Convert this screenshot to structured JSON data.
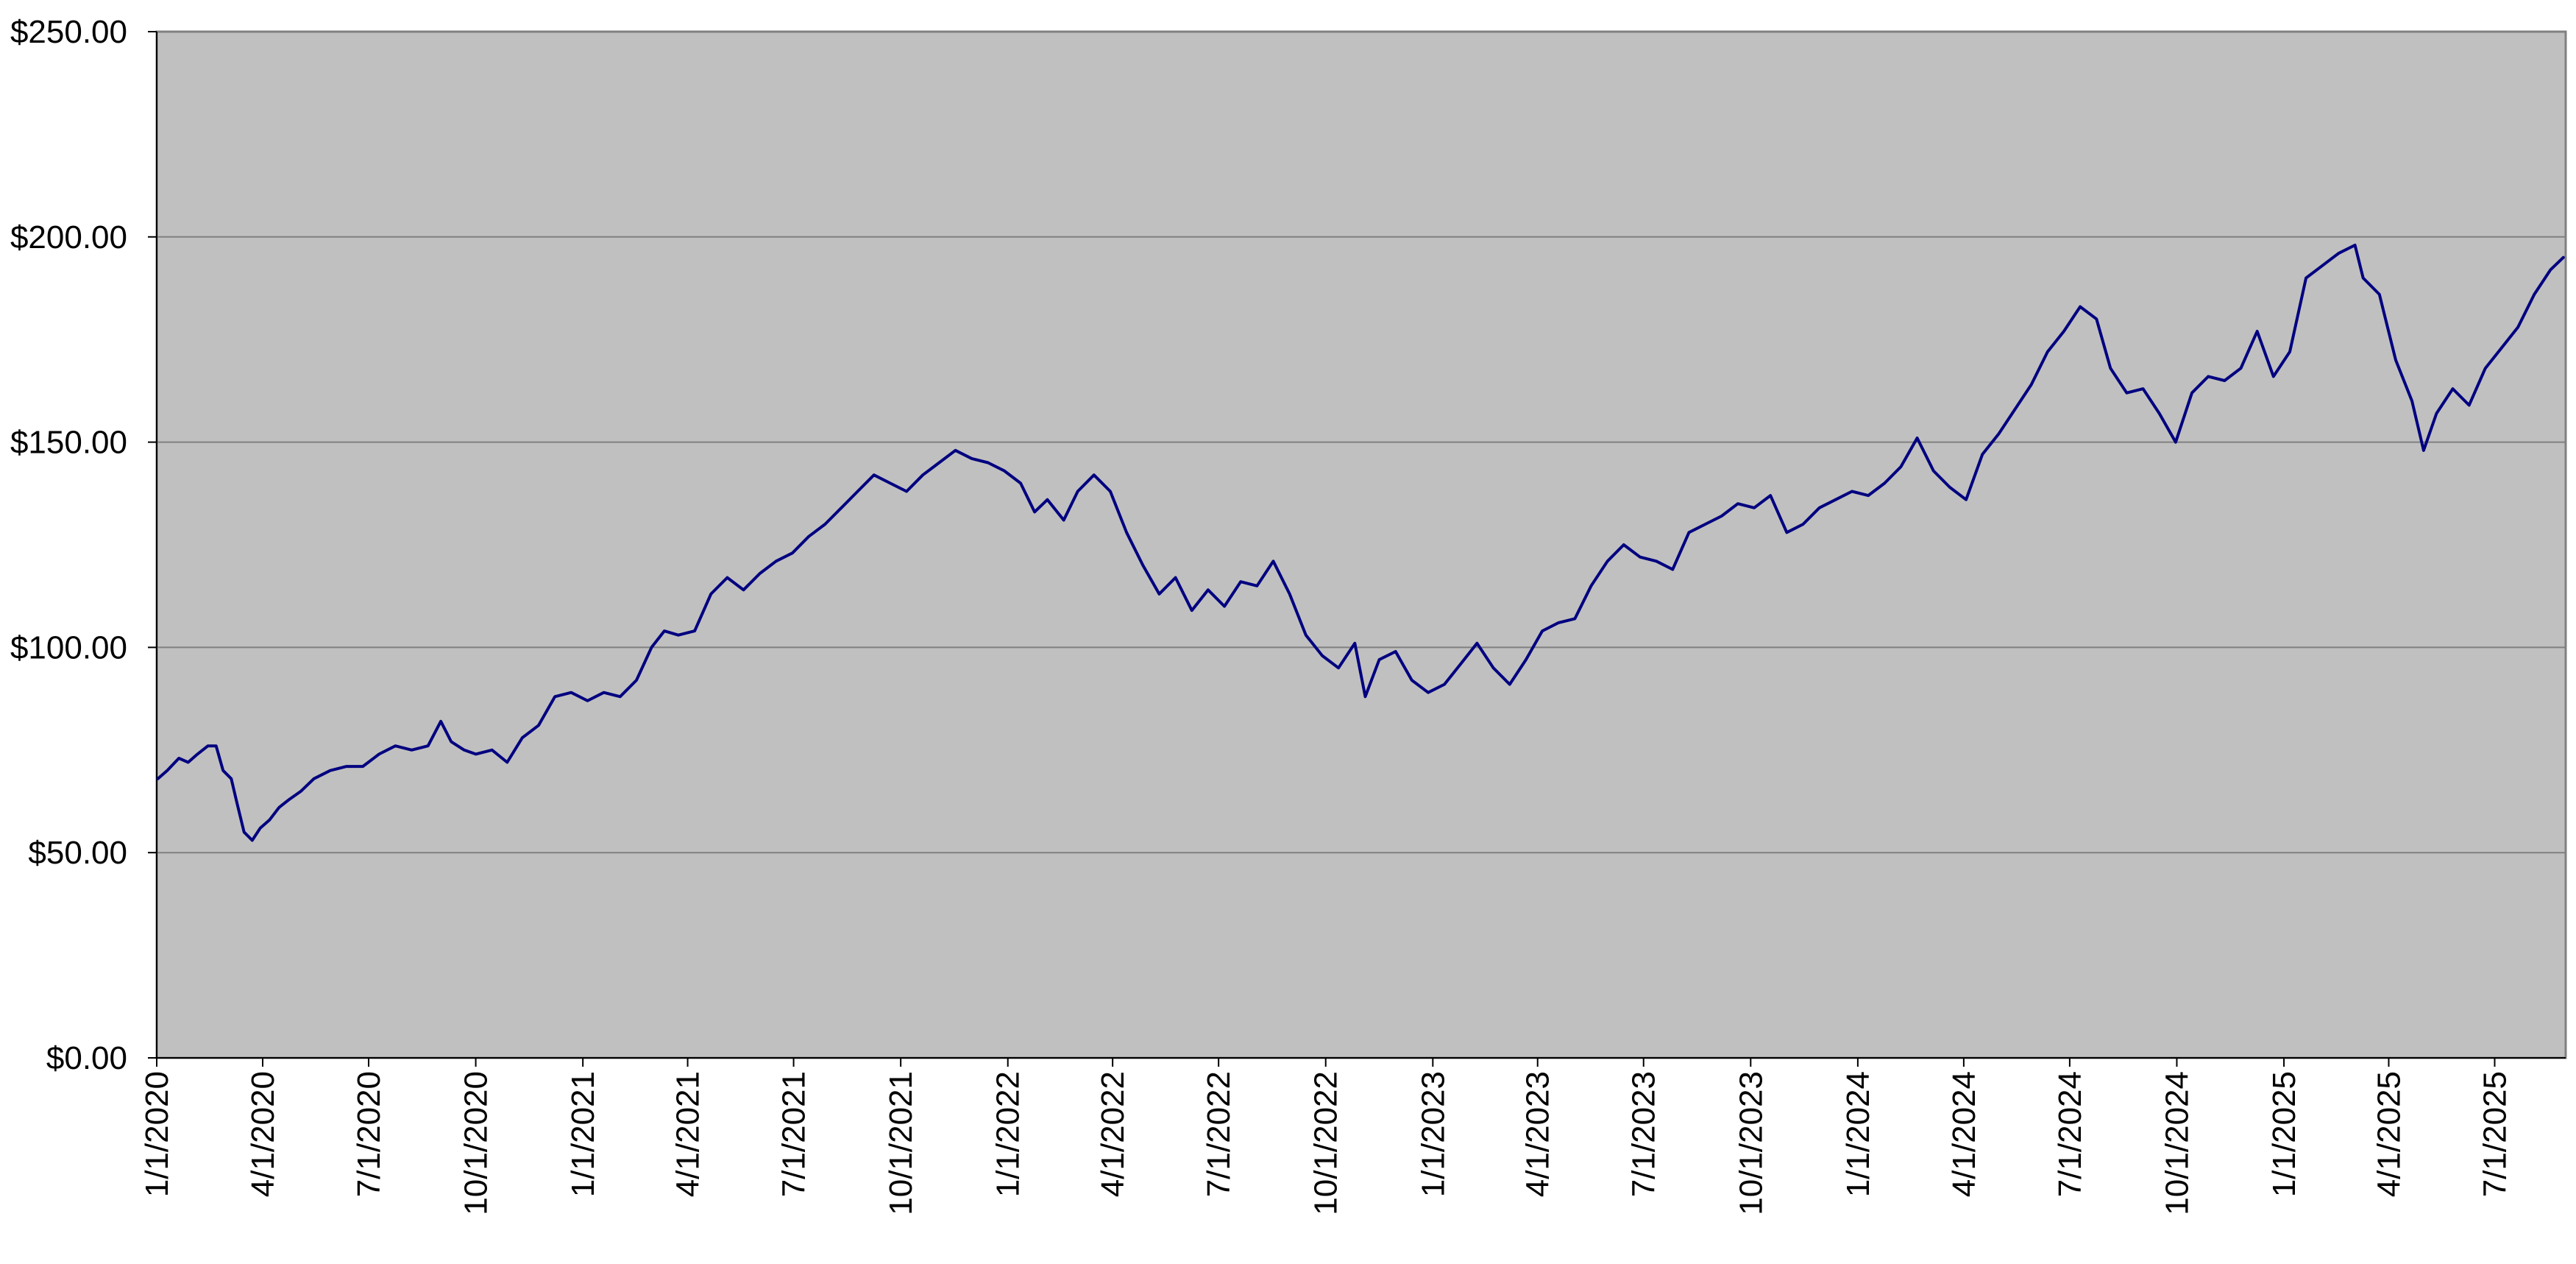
{
  "chart_data": {
    "type": "line",
    "title": "",
    "xlabel": "",
    "ylabel": "",
    "grid": true,
    "colors": {
      "plot_background": "#c0c0c0",
      "page_background": "#ffffff",
      "line": "#000080",
      "gridline": "#808080",
      "axis": "#808080"
    },
    "ylim": [
      0,
      250
    ],
    "y_ticks": [
      {
        "value": 0,
        "label": "$0.00"
      },
      {
        "value": 50,
        "label": "$50.00"
      },
      {
        "value": 100,
        "label": "$100.00"
      },
      {
        "value": 150,
        "label": "$150.00"
      },
      {
        "value": 200,
        "label": "$200.00"
      },
      {
        "value": 250,
        "label": "$250.00"
      }
    ],
    "xlim": [
      "2020-01-01",
      "2025-08-31"
    ],
    "x_ticks": [
      {
        "date": "2020-01-01",
        "label": "1/1/2020"
      },
      {
        "date": "2020-04-01",
        "label": "4/1/2020"
      },
      {
        "date": "2020-07-01",
        "label": "7/1/2020"
      },
      {
        "date": "2020-10-01",
        "label": "10/1/2020"
      },
      {
        "date": "2021-01-01",
        "label": "1/1/2021"
      },
      {
        "date": "2021-04-01",
        "label": "4/1/2021"
      },
      {
        "date": "2021-07-01",
        "label": "7/1/2021"
      },
      {
        "date": "2021-10-01",
        "label": "10/1/2021"
      },
      {
        "date": "2022-01-01",
        "label": "1/1/2022"
      },
      {
        "date": "2022-04-01",
        "label": "4/1/2022"
      },
      {
        "date": "2022-07-01",
        "label": "7/1/2022"
      },
      {
        "date": "2022-10-01",
        "label": "10/1/2022"
      },
      {
        "date": "2023-01-01",
        "label": "1/1/2023"
      },
      {
        "date": "2023-04-01",
        "label": "4/1/2023"
      },
      {
        "date": "2023-07-01",
        "label": "7/1/2023"
      },
      {
        "date": "2023-10-01",
        "label": "10/1/2023"
      },
      {
        "date": "2024-01-01",
        "label": "1/1/2024"
      },
      {
        "date": "2024-04-01",
        "label": "4/1/2024"
      },
      {
        "date": "2024-07-01",
        "label": "7/1/2024"
      },
      {
        "date": "2024-10-01",
        "label": "10/1/2024"
      },
      {
        "date": "2025-01-01",
        "label": "1/1/2025"
      },
      {
        "date": "2025-04-01",
        "label": "4/1/2025"
      },
      {
        "date": "2025-07-01",
        "label": "7/1/2025"
      }
    ],
    "series": [
      {
        "points": [
          [
            "2020-01-02",
            68
          ],
          [
            "2020-01-10",
            70
          ],
          [
            "2020-01-20",
            73
          ],
          [
            "2020-01-28",
            72
          ],
          [
            "2020-02-05",
            74
          ],
          [
            "2020-02-14",
            76
          ],
          [
            "2020-02-21",
            76
          ],
          [
            "2020-02-27",
            70
          ],
          [
            "2020-03-05",
            68
          ],
          [
            "2020-03-10",
            62
          ],
          [
            "2020-03-16",
            55
          ],
          [
            "2020-03-23",
            53
          ],
          [
            "2020-03-30",
            56
          ],
          [
            "2020-04-07",
            58
          ],
          [
            "2020-04-15",
            61
          ],
          [
            "2020-04-24",
            63
          ],
          [
            "2020-05-04",
            65
          ],
          [
            "2020-05-15",
            68
          ],
          [
            "2020-05-29",
            70
          ],
          [
            "2020-06-12",
            71
          ],
          [
            "2020-06-26",
            71
          ],
          [
            "2020-07-10",
            74
          ],
          [
            "2020-07-24",
            76
          ],
          [
            "2020-08-07",
            75
          ],
          [
            "2020-08-21",
            76
          ],
          [
            "2020-09-01",
            82
          ],
          [
            "2020-09-10",
            77
          ],
          [
            "2020-09-21",
            75
          ],
          [
            "2020-10-01",
            74
          ],
          [
            "2020-10-15",
            75
          ],
          [
            "2020-10-28",
            72
          ],
          [
            "2020-11-10",
            78
          ],
          [
            "2020-11-24",
            81
          ],
          [
            "2020-12-08",
            88
          ],
          [
            "2020-12-22",
            89
          ],
          [
            "2021-01-05",
            87
          ],
          [
            "2021-01-19",
            89
          ],
          [
            "2021-02-02",
            88
          ],
          [
            "2021-02-16",
            92
          ],
          [
            "2021-03-01",
            100
          ],
          [
            "2021-03-12",
            104
          ],
          [
            "2021-03-24",
            103
          ],
          [
            "2021-04-07",
            104
          ],
          [
            "2021-04-21",
            113
          ],
          [
            "2021-05-05",
            117
          ],
          [
            "2021-05-19",
            114
          ],
          [
            "2021-06-02",
            118
          ],
          [
            "2021-06-16",
            121
          ],
          [
            "2021-06-30",
            123
          ],
          [
            "2021-07-14",
            127
          ],
          [
            "2021-07-28",
            130
          ],
          [
            "2021-08-11",
            134
          ],
          [
            "2021-08-25",
            138
          ],
          [
            "2021-09-08",
            142
          ],
          [
            "2021-09-22",
            140
          ],
          [
            "2021-10-06",
            138
          ],
          [
            "2021-10-20",
            142
          ],
          [
            "2021-11-03",
            145
          ],
          [
            "2021-11-17",
            148
          ],
          [
            "2021-12-01",
            146
          ],
          [
            "2021-12-15",
            145
          ],
          [
            "2021-12-29",
            143
          ],
          [
            "2022-01-12",
            140
          ],
          [
            "2022-01-24",
            133
          ],
          [
            "2022-02-04",
            136
          ],
          [
            "2022-02-18",
            131
          ],
          [
            "2022-03-02",
            138
          ],
          [
            "2022-03-16",
            142
          ],
          [
            "2022-03-30",
            138
          ],
          [
            "2022-04-13",
            128
          ],
          [
            "2022-04-27",
            120
          ],
          [
            "2022-05-11",
            113
          ],
          [
            "2022-05-25",
            117
          ],
          [
            "2022-06-08",
            109
          ],
          [
            "2022-06-22",
            114
          ],
          [
            "2022-07-06",
            110
          ],
          [
            "2022-07-20",
            116
          ],
          [
            "2022-08-03",
            115
          ],
          [
            "2022-08-17",
            121
          ],
          [
            "2022-08-31",
            113
          ],
          [
            "2022-09-14",
            103
          ],
          [
            "2022-09-28",
            98
          ],
          [
            "2022-10-12",
            95
          ],
          [
            "2022-10-26",
            101
          ],
          [
            "2022-11-04",
            88
          ],
          [
            "2022-11-16",
            97
          ],
          [
            "2022-11-30",
            99
          ],
          [
            "2022-12-14",
            92
          ],
          [
            "2022-12-28",
            89
          ],
          [
            "2023-01-11",
            91
          ],
          [
            "2023-01-25",
            96
          ],
          [
            "2023-02-08",
            101
          ],
          [
            "2023-02-22",
            95
          ],
          [
            "2023-03-08",
            91
          ],
          [
            "2023-03-22",
            97
          ],
          [
            "2023-04-05",
            104
          ],
          [
            "2023-04-19",
            106
          ],
          [
            "2023-05-03",
            107
          ],
          [
            "2023-05-17",
            115
          ],
          [
            "2023-05-31",
            121
          ],
          [
            "2023-06-14",
            125
          ],
          [
            "2023-06-28",
            122
          ],
          [
            "2023-07-12",
            121
          ],
          [
            "2023-07-26",
            119
          ],
          [
            "2023-08-09",
            128
          ],
          [
            "2023-08-23",
            130
          ],
          [
            "2023-09-06",
            132
          ],
          [
            "2023-09-20",
            135
          ],
          [
            "2023-10-04",
            134
          ],
          [
            "2023-10-18",
            137
          ],
          [
            "2023-11-01",
            128
          ],
          [
            "2023-11-15",
            130
          ],
          [
            "2023-11-29",
            134
          ],
          [
            "2023-12-13",
            136
          ],
          [
            "2023-12-27",
            138
          ],
          [
            "2024-01-10",
            137
          ],
          [
            "2024-01-24",
            140
          ],
          [
            "2024-02-07",
            144
          ],
          [
            "2024-02-21",
            151
          ],
          [
            "2024-03-06",
            143
          ],
          [
            "2024-03-20",
            139
          ],
          [
            "2024-04-03",
            136
          ],
          [
            "2024-04-17",
            147
          ],
          [
            "2024-05-01",
            152
          ],
          [
            "2024-05-15",
            158
          ],
          [
            "2024-05-29",
            164
          ],
          [
            "2024-06-12",
            172
          ],
          [
            "2024-06-26",
            177
          ],
          [
            "2024-07-10",
            183
          ],
          [
            "2024-07-24",
            180
          ],
          [
            "2024-08-05",
            168
          ],
          [
            "2024-08-19",
            162
          ],
          [
            "2024-09-02",
            163
          ],
          [
            "2024-09-16",
            157
          ],
          [
            "2024-09-30",
            150
          ],
          [
            "2024-10-14",
            162
          ],
          [
            "2024-10-28",
            166
          ],
          [
            "2024-11-11",
            165
          ],
          [
            "2024-11-25",
            168
          ],
          [
            "2024-12-09",
            177
          ],
          [
            "2024-12-23",
            166
          ],
          [
            "2025-01-06",
            172
          ],
          [
            "2025-01-20",
            190
          ],
          [
            "2025-02-03",
            193
          ],
          [
            "2025-02-17",
            196
          ],
          [
            "2025-03-03",
            198
          ],
          [
            "2025-03-10",
            190
          ],
          [
            "2025-03-24",
            186
          ],
          [
            "2025-04-07",
            170
          ],
          [
            "2025-04-21",
            160
          ],
          [
            "2025-05-01",
            148
          ],
          [
            "2025-05-12",
            157
          ],
          [
            "2025-05-26",
            163
          ],
          [
            "2025-06-09",
            159
          ],
          [
            "2025-06-23",
            168
          ],
          [
            "2025-07-07",
            173
          ],
          [
            "2025-07-21",
            178
          ],
          [
            "2025-08-04",
            186
          ],
          [
            "2025-08-18",
            192
          ],
          [
            "2025-08-29",
            195
          ]
        ]
      }
    ]
  }
}
